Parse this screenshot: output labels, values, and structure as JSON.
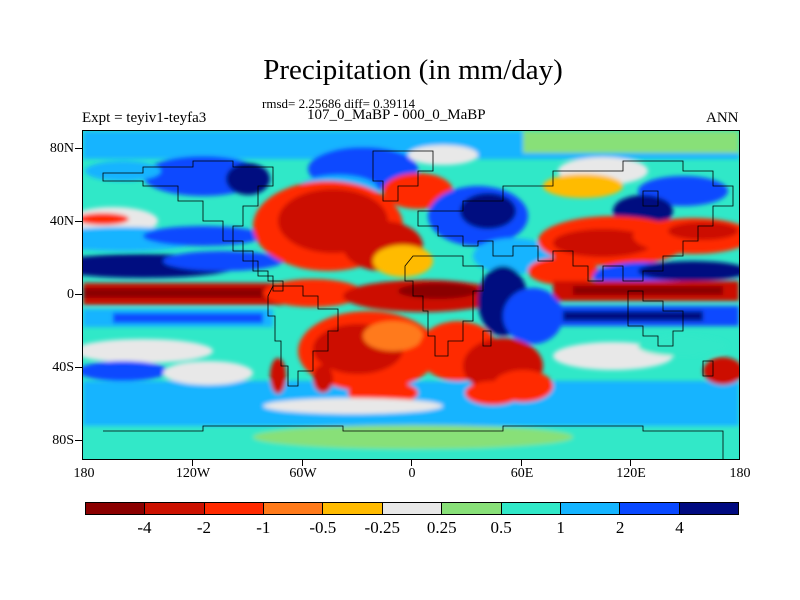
{
  "title": "Precipitation (in mm/day)",
  "stats": "rmsd= 2.25686 diff= 0.39114",
  "subtitle": "107_0_MaBP - 000_0_MaBP",
  "expt": "Expt = teyiv1-teyfa3",
  "season": "ANN",
  "lat_labels": [
    "80N",
    "40N",
    "0",
    "40S",
    "80S"
  ],
  "lon_labels": [
    "180",
    "120W",
    "60W",
    "0",
    "60E",
    "120E",
    "180"
  ],
  "colorbar": {
    "colors": [
      "#8b0000",
      "#cc1100",
      "#ff2a00",
      "#ff7a1a",
      "#ffbb00",
      "#e8e8e8",
      "#88e078",
      "#30e8c8",
      "#14b4ff",
      "#0848ff",
      "#000a80"
    ],
    "labels": [
      "-4",
      "-2",
      "-1",
      "-0.5",
      "-0.25",
      "0.25",
      "0.5",
      "1",
      "2",
      "4"
    ]
  }
}
